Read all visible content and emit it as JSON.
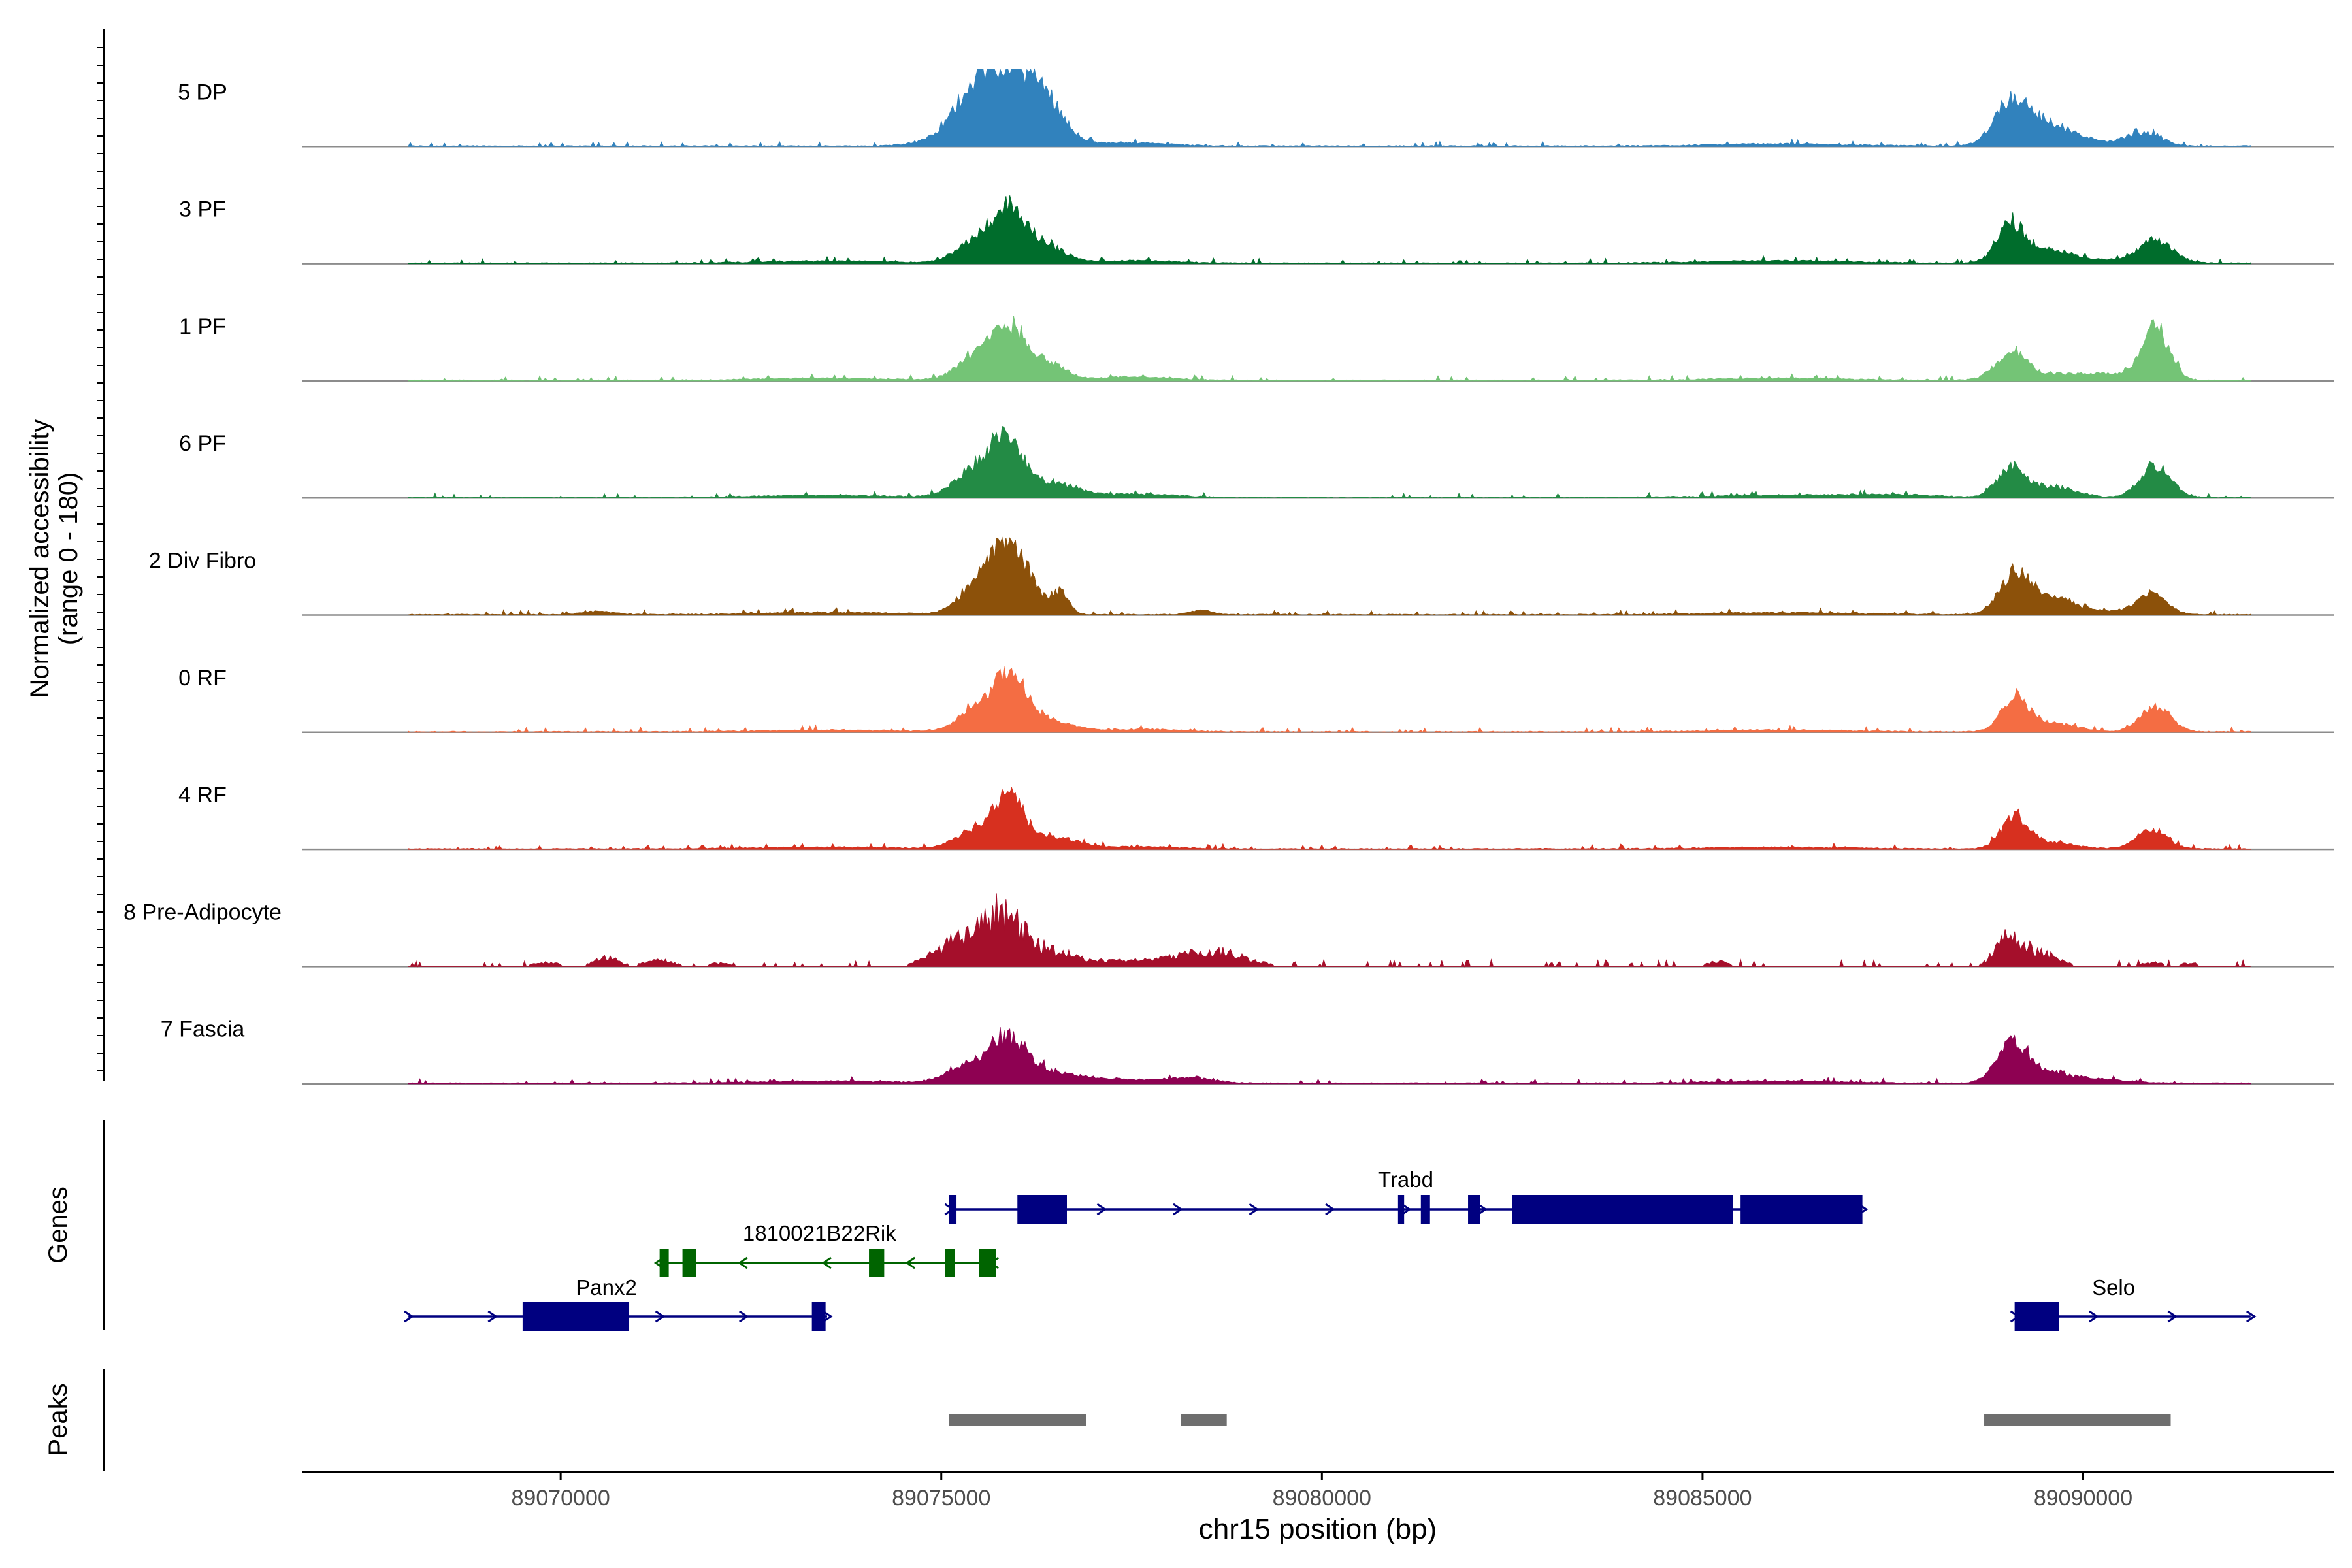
{
  "chart_data": {
    "type": "area",
    "title": "",
    "xlabel": "chr15 position (bp)",
    "ylabel_line1": "Normalized accessibility",
    "ylabel_line2": "(range 0 - 180)",
    "ylim": [
      0,
      180
    ],
    "xlim": [
      89066600,
      89093300
    ],
    "x_ticks": [
      89070000,
      89075000,
      89080000,
      89085000,
      89090000
    ],
    "x_tick_labels": [
      "89070000",
      "89075000",
      "89080000",
      "89085000",
      "89090000"
    ],
    "track_range": [
      89068000,
      89092200
    ],
    "series": [
      {
        "name": "5 DP",
        "color": "#3182BD",
        "peaks": [
          [
            89075900,
            170,
            350
          ],
          [
            89075400,
            90,
            250
          ],
          [
            89076400,
            65,
            250
          ],
          [
            89074900,
            12,
            300
          ],
          [
            89077500,
            8,
            500
          ],
          [
            89089050,
            100,
            220
          ],
          [
            89089500,
            40,
            280
          ],
          [
            89090800,
            30,
            220
          ],
          [
            89089900,
            15,
            400
          ],
          [
            89086000,
            5,
            900
          ]
        ]
      },
      {
        "name": "3 PF",
        "color": "#006D2C",
        "peaks": [
          [
            89075900,
            120,
            220
          ],
          [
            89075450,
            50,
            250
          ],
          [
            89076400,
            35,
            250
          ],
          [
            89077600,
            6,
            500
          ],
          [
            89073500,
            5,
            900
          ],
          [
            89089050,
            90,
            180
          ],
          [
            89089550,
            25,
            250
          ],
          [
            89090950,
            55,
            220
          ],
          [
            89090000,
            10,
            400
          ],
          [
            89086000,
            6,
            900
          ]
        ]
      },
      {
        "name": "1 PF",
        "color": "#74C476",
        "peaks": [
          [
            89075900,
            120,
            220
          ],
          [
            89075450,
            50,
            250
          ],
          [
            89076400,
            38,
            220
          ],
          [
            89077500,
            8,
            500
          ],
          [
            89073500,
            5,
            900
          ],
          [
            89089050,
            60,
            200
          ],
          [
            89089700,
            14,
            500
          ],
          [
            89090950,
            120,
            180
          ],
          [
            89090400,
            10,
            300
          ],
          [
            89086000,
            5,
            900
          ]
        ]
      },
      {
        "name": "6 PF",
        "color": "#238B45",
        "peaks": [
          [
            89075850,
            130,
            230
          ],
          [
            89075400,
            55,
            250
          ],
          [
            89076500,
            30,
            300
          ],
          [
            89077600,
            8,
            500
          ],
          [
            89073500,
            5,
            900
          ],
          [
            89089050,
            70,
            180
          ],
          [
            89089600,
            25,
            300
          ],
          [
            89090950,
            75,
            200
          ],
          [
            89087500,
            6,
            600
          ],
          [
            89086000,
            5,
            900
          ]
        ]
      },
      {
        "name": "2 Div Fibro",
        "color": "#8C510A",
        "peaks": [
          [
            89075900,
            170,
            250
          ],
          [
            89075450,
            50,
            250
          ],
          [
            89076550,
            50,
            120
          ],
          [
            89078400,
            10,
            150
          ],
          [
            89070500,
            8,
            200
          ],
          [
            89073500,
            5,
            900
          ],
          [
            89089100,
            95,
            200
          ],
          [
            89089600,
            40,
            250
          ],
          [
            89090900,
            45,
            200
          ],
          [
            89090200,
            10,
            300
          ],
          [
            89086000,
            5,
            900
          ]
        ]
      },
      {
        "name": "0 RF",
        "color": "#F46D43",
        "peaks": [
          [
            89075900,
            120,
            220
          ],
          [
            89075450,
            45,
            250
          ],
          [
            89076400,
            25,
            300
          ],
          [
            89077600,
            6,
            500
          ],
          [
            89073500,
            4,
            900
          ],
          [
            89089100,
            80,
            180
          ],
          [
            89089600,
            20,
            300
          ],
          [
            89090950,
            60,
            200
          ],
          [
            89086000,
            4,
            900
          ]
        ]
      },
      {
        "name": "4 RF",
        "color": "#D7301F",
        "peaks": [
          [
            89075900,
            110,
            200
          ],
          [
            89075450,
            45,
            250
          ],
          [
            89076500,
            25,
            300
          ],
          [
            89077600,
            5,
            500
          ],
          [
            89073500,
            4,
            900
          ],
          [
            89089100,
            70,
            180
          ],
          [
            89089600,
            15,
            300
          ],
          [
            89090900,
            45,
            200
          ],
          [
            89086000,
            4,
            900
          ]
        ]
      },
      {
        "name": "8 Pre-Adipocyte",
        "color": "#A50F2B",
        "peaks": [
          [
            89075800,
            130,
            250
          ],
          [
            89075200,
            60,
            300
          ],
          [
            89076400,
            35,
            300
          ],
          [
            89078600,
            35,
            400
          ],
          [
            89077500,
            15,
            700
          ],
          [
            89070600,
            25,
            150
          ],
          [
            89071300,
            15,
            200
          ],
          [
            89069800,
            10,
            200
          ],
          [
            89072100,
            8,
            200
          ],
          [
            89089050,
            80,
            180
          ],
          [
            89089500,
            30,
            200
          ],
          [
            89085200,
            12,
            150
          ],
          [
            89090900,
            10,
            150
          ],
          [
            89091400,
            8,
            150
          ]
        ]
      },
      {
        "name": "7 Fascia",
        "color": "#8E0152",
        "peaks": [
          [
            89075900,
            90,
            250
          ],
          [
            89075400,
            40,
            300
          ],
          [
            89076500,
            20,
            400
          ],
          [
            89078300,
            10,
            300
          ],
          [
            89077500,
            8,
            500
          ],
          [
            89073500,
            5,
            900
          ],
          [
            89089050,
            90,
            200
          ],
          [
            89089500,
            25,
            300
          ],
          [
            89090200,
            8,
            400
          ],
          [
            89086000,
            5,
            900
          ]
        ]
      }
    ],
    "genes_label": "Genes",
    "peaks_label": "Peaks",
    "genes": [
      {
        "name": "Trabd",
        "color": "#000080",
        "strand": "+",
        "start": 89075100,
        "end": 89087100,
        "row": 0,
        "exons": [
          [
            89075100,
            89075200
          ],
          [
            89076000,
            89076650
          ],
          [
            89081000,
            89081080
          ],
          [
            89081300,
            89081420
          ],
          [
            89081920,
            89082080
          ],
          [
            89082500,
            89085400
          ],
          [
            89085500,
            89087100
          ]
        ]
      },
      {
        "name": "1810021B22Rik",
        "color": "#006400",
        "strand": "-",
        "start": 89071300,
        "end": 89075700,
        "row": 1,
        "exons": [
          [
            89071300,
            89071420
          ],
          [
            89071600,
            89071780
          ],
          [
            89074050,
            89074250
          ],
          [
            89075050,
            89075180
          ],
          [
            89075500,
            89075720
          ]
        ]
      },
      {
        "name": "Panx2",
        "color": "#000080",
        "strand": "+",
        "start": 89068000,
        "end": 89073500,
        "row": 2,
        "exons": [
          [
            89069500,
            89070900
          ],
          [
            89073300,
            89073480
          ]
        ]
      },
      {
        "name": "Selo",
        "color": "#000080",
        "strand": "+",
        "start": 89089100,
        "end": 89092200,
        "row": 2,
        "exons": [
          [
            89089100,
            89089680
          ]
        ]
      }
    ],
    "peak_regions": [
      [
        89075100,
        89076900
      ],
      [
        89078150,
        89078750
      ],
      [
        89088700,
        89091150
      ]
    ]
  }
}
